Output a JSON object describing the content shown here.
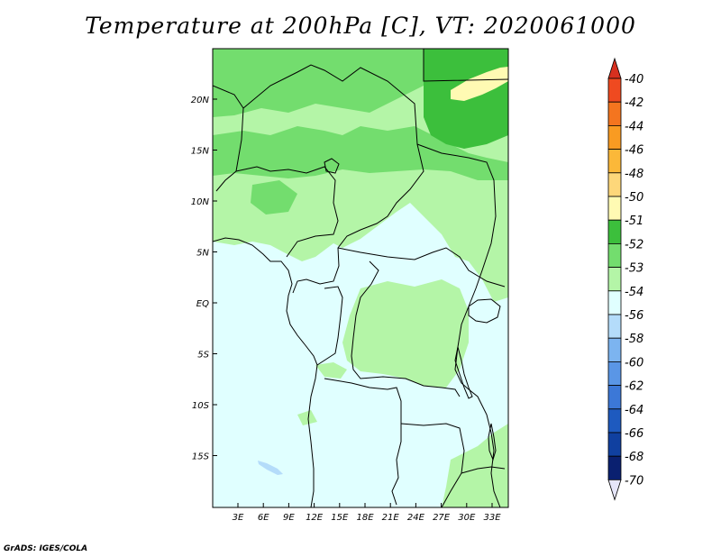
{
  "title": "Temperature at 200hPa [C], VT: 2020061000",
  "credit": "GrADS: IGES/COLA",
  "map": {
    "lat_labels": [
      "20N",
      "15N",
      "10N",
      "5N",
      "EQ",
      "5S",
      "10S",
      "15S"
    ],
    "lon_labels": [
      "3E",
      "6E",
      "9E",
      "12E",
      "15E",
      "18E",
      "21E",
      "24E",
      "27E",
      "30E",
      "33E"
    ]
  },
  "colorbar": {
    "labels": [
      "-40",
      "-42",
      "-44",
      "-46",
      "-48",
      "-50",
      "-51",
      "-52",
      "-53",
      "-54",
      "-56",
      "-58",
      "-60",
      "-62",
      "-64",
      "-66",
      "-68",
      "-70"
    ],
    "colors": [
      "#d7301f",
      "#ef4a20",
      "#f4751f",
      "#f99b22",
      "#fbb839",
      "#fdd77a",
      "#fffab3",
      "#3cbf3c",
      "#73dd6e",
      "#b4f5a7",
      "#e0ffff",
      "#b4dcfa",
      "#7cb4f0",
      "#5a96e6",
      "#3c78d7",
      "#1e5abf",
      "#1040a0",
      "#0a2070",
      "#000050"
    ],
    "top_color": "#d7301f",
    "bottom_color": "#e6e6fa"
  },
  "colors": {
    "green_dark": "#3cbf3c",
    "green_mid": "#73dd6e",
    "green_light": "#b4f5a7",
    "cyan_light": "#e0ffff",
    "blue_light": "#b4dcfa",
    "yellow": "#fffab3"
  }
}
